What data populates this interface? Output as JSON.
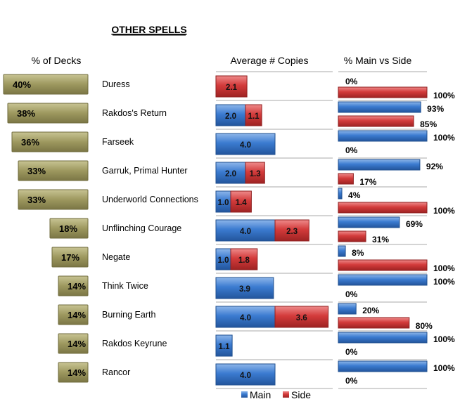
{
  "chart_data": {
    "type": "bar",
    "title": "OTHER SPELLS",
    "panels": [
      "% of Decks",
      "Average # Copies",
      "% Main vs Side"
    ],
    "categories": [
      "Duress",
      "Rakdos's Return",
      "Farseek",
      "Garruk, Primal Hunter",
      "Underworld Connections",
      "Unflinching Courage",
      "Negate",
      "Think Twice",
      "Burning Earth",
      "Rakdos Keyrune",
      "Rancor"
    ],
    "pct_decks": [
      40,
      38,
      36,
      33,
      33,
      18,
      17,
      14,
      14,
      14,
      14
    ],
    "avg_copies": {
      "main": [
        null,
        2.0,
        4.0,
        2.0,
        1.0,
        4.0,
        1.0,
        3.9,
        4.0,
        1.1,
        4.0
      ],
      "side": [
        2.1,
        1.1,
        null,
        1.3,
        1.4,
        2.3,
        1.8,
        null,
        3.6,
        null,
        null
      ]
    },
    "pct_main_vs_side": {
      "main": [
        0,
        93,
        100,
        92,
        4,
        69,
        8,
        100,
        20,
        100,
        100
      ],
      "side": [
        100,
        85,
        0,
        17,
        100,
        31,
        100,
        0,
        80,
        0,
        0
      ]
    },
    "legend": [
      {
        "name": "Main",
        "color": "#3a78c9"
      },
      {
        "name": "Side",
        "color": "#d23c3c"
      }
    ],
    "legend_placement": "bottom"
  },
  "colors": {
    "decks": "#9b9660",
    "main": "#3a78c9",
    "side": "#d23c3c"
  }
}
